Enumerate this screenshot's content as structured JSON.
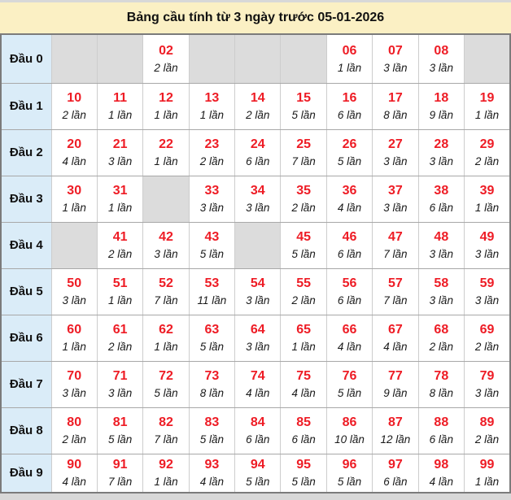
{
  "title": "Bảng cầu tính từ 3 ngày trước 05-01-2026",
  "colors": {
    "title_background": "#fbf0c4",
    "row_label_background": "#daecf8",
    "empty_cell_background": "#dcdcdc",
    "number_red": "#ee1c25",
    "outer_border": "#7b7b7b"
  },
  "chart_data": {
    "type": "table",
    "title": "Bảng cầu tính từ 3 ngày trước 05-01-2026",
    "count_unit": "lần",
    "rows": [
      {
        "label": "Đầu 0",
        "cells": [
          null,
          null,
          {
            "number": "02",
            "count": "2 lần"
          },
          null,
          null,
          null,
          {
            "number": "06",
            "count": "1 lần"
          },
          {
            "number": "07",
            "count": "3 lần"
          },
          {
            "number": "08",
            "count": "3 lần"
          },
          null
        ]
      },
      {
        "label": "Đầu 1",
        "cells": [
          {
            "number": "10",
            "count": "2 lần"
          },
          {
            "number": "11",
            "count": "1 lần"
          },
          {
            "number": "12",
            "count": "1 lần"
          },
          {
            "number": "13",
            "count": "1 lần"
          },
          {
            "number": "14",
            "count": "2 lần"
          },
          {
            "number": "15",
            "count": "5 lần"
          },
          {
            "number": "16",
            "count": "6 lần"
          },
          {
            "number": "17",
            "count": "8 lần"
          },
          {
            "number": "18",
            "count": "9 lần"
          },
          {
            "number": "19",
            "count": "1 lần"
          }
        ]
      },
      {
        "label": "Đầu 2",
        "cells": [
          {
            "number": "20",
            "count": "4 lần"
          },
          {
            "number": "21",
            "count": "3 lần"
          },
          {
            "number": "22",
            "count": "1 lần"
          },
          {
            "number": "23",
            "count": "2 lần"
          },
          {
            "number": "24",
            "count": "6 lần"
          },
          {
            "number": "25",
            "count": "7 lần"
          },
          {
            "number": "26",
            "count": "5 lần"
          },
          {
            "number": "27",
            "count": "3 lần"
          },
          {
            "number": "28",
            "count": "3 lần"
          },
          {
            "number": "29",
            "count": "2 lần"
          }
        ]
      },
      {
        "label": "Đầu 3",
        "cells": [
          {
            "number": "30",
            "count": "1 lần"
          },
          {
            "number": "31",
            "count": "1 lần"
          },
          null,
          {
            "number": "33",
            "count": "3 lần"
          },
          {
            "number": "34",
            "count": "3 lần"
          },
          {
            "number": "35",
            "count": "2 lần"
          },
          {
            "number": "36",
            "count": "4 lần"
          },
          {
            "number": "37",
            "count": "3 lần"
          },
          {
            "number": "38",
            "count": "6 lần"
          },
          {
            "number": "39",
            "count": "1 lần"
          }
        ]
      },
      {
        "label": "Đầu 4",
        "cells": [
          null,
          {
            "number": "41",
            "count": "2 lần"
          },
          {
            "number": "42",
            "count": "3 lần"
          },
          {
            "number": "43",
            "count": "5 lần"
          },
          null,
          {
            "number": "45",
            "count": "5 lần"
          },
          {
            "number": "46",
            "count": "6 lần"
          },
          {
            "number": "47",
            "count": "7 lần"
          },
          {
            "number": "48",
            "count": "3 lần"
          },
          {
            "number": "49",
            "count": "3 lần"
          }
        ]
      },
      {
        "label": "Đầu 5",
        "cells": [
          {
            "number": "50",
            "count": "3 lần"
          },
          {
            "number": "51",
            "count": "1 lần"
          },
          {
            "number": "52",
            "count": "7 lần"
          },
          {
            "number": "53",
            "count": "11 lần"
          },
          {
            "number": "54",
            "count": "3 lần"
          },
          {
            "number": "55",
            "count": "2 lần"
          },
          {
            "number": "56",
            "count": "6 lần"
          },
          {
            "number": "57",
            "count": "7 lần"
          },
          {
            "number": "58",
            "count": "3 lần"
          },
          {
            "number": "59",
            "count": "3 lần"
          }
        ]
      },
      {
        "label": "Đầu 6",
        "cells": [
          {
            "number": "60",
            "count": "1 lần"
          },
          {
            "number": "61",
            "count": "2 lần"
          },
          {
            "number": "62",
            "count": "1 lần"
          },
          {
            "number": "63",
            "count": "5 lần"
          },
          {
            "number": "64",
            "count": "3 lần"
          },
          {
            "number": "65",
            "count": "1 lần"
          },
          {
            "number": "66",
            "count": "4 lần"
          },
          {
            "number": "67",
            "count": "4 lần"
          },
          {
            "number": "68",
            "count": "2 lần"
          },
          {
            "number": "69",
            "count": "2 lần"
          }
        ]
      },
      {
        "label": "Đầu 7",
        "cells": [
          {
            "number": "70",
            "count": "3 lần"
          },
          {
            "number": "71",
            "count": "3 lần"
          },
          {
            "number": "72",
            "count": "5 lần"
          },
          {
            "number": "73",
            "count": "8 lần"
          },
          {
            "number": "74",
            "count": "4 lần"
          },
          {
            "number": "75",
            "count": "4 lần"
          },
          {
            "number": "76",
            "count": "5 lần"
          },
          {
            "number": "77",
            "count": "9 lần"
          },
          {
            "number": "78",
            "count": "8 lần"
          },
          {
            "number": "79",
            "count": "3 lần"
          }
        ]
      },
      {
        "label": "Đầu 8",
        "cells": [
          {
            "number": "80",
            "count": "2 lần"
          },
          {
            "number": "81",
            "count": "5 lần"
          },
          {
            "number": "82",
            "count": "7 lần"
          },
          {
            "number": "83",
            "count": "5 lần"
          },
          {
            "number": "84",
            "count": "6 lần"
          },
          {
            "number": "85",
            "count": "6 lần"
          },
          {
            "number": "86",
            "count": "10 lần"
          },
          {
            "number": "87",
            "count": "12 lần"
          },
          {
            "number": "88",
            "count": "6 lần"
          },
          {
            "number": "89",
            "count": "2 lần"
          }
        ]
      },
      {
        "label": "Đầu 9",
        "cells": [
          {
            "number": "90",
            "count": "4 lần"
          },
          {
            "number": "91",
            "count": "7 lần"
          },
          {
            "number": "92",
            "count": "1 lần"
          },
          {
            "number": "93",
            "count": "4 lần"
          },
          {
            "number": "94",
            "count": "5 lần"
          },
          {
            "number": "95",
            "count": "5 lần"
          },
          {
            "number": "96",
            "count": "5 lần"
          },
          {
            "number": "97",
            "count": "6 lần"
          },
          {
            "number": "98",
            "count": "4 lần"
          },
          {
            "number": "99",
            "count": "1 lần"
          }
        ]
      }
    ]
  }
}
